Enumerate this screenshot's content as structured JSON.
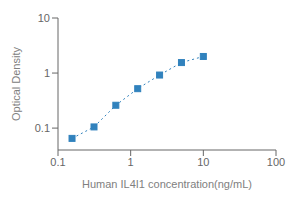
{
  "chart_data": {
    "type": "line",
    "xlabel": "Human IL4I1 concentration(ng/mL)",
    "ylabel": "Optical Density",
    "x": [
      0.156,
      0.313,
      0.625,
      1.25,
      2.5,
      5.0,
      10.0
    ],
    "values": [
      0.065,
      0.105,
      0.26,
      0.52,
      0.92,
      1.55,
      2.0
    ],
    "xlim": [
      0.1,
      100
    ],
    "ylim": [
      0.04,
      10
    ],
    "xticks": [
      0.1,
      1,
      10,
      100
    ],
    "yticks": [
      0.1,
      1,
      10
    ],
    "log": true,
    "grid": false,
    "marker": "square",
    "line_style": "dotted"
  }
}
